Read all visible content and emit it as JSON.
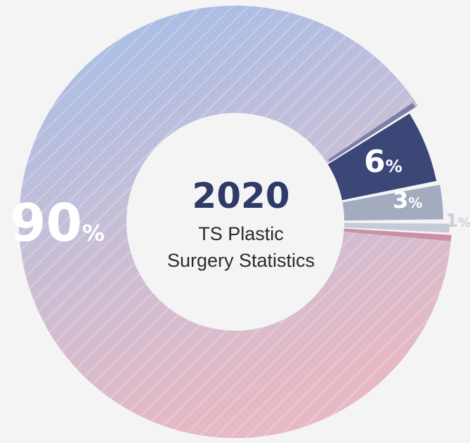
{
  "chart_data": {
    "type": "pie",
    "title": "2020",
    "subtitle_lines": [
      "TS Plastic",
      "Surgery Statistics"
    ],
    "slices": [
      {
        "label_number": "90",
        "label_unit": "%",
        "value": 90,
        "color": "#a9c0e6"
      },
      {
        "label_number": "6",
        "label_unit": "%",
        "value": 6,
        "color": "#3a4777"
      },
      {
        "label_number": "3",
        "label_unit": "%",
        "value": 3,
        "color": "#a3abbe"
      },
      {
        "label_number": "1",
        "label_unit": "%",
        "value": 1,
        "color": "#c5ccd8"
      }
    ],
    "colors": {
      "gradient_top": "#a3bde9",
      "gradient_mid": "#c5bfd8",
      "gradient_bottom": "#e6b9c4",
      "background": "#f4f4f5",
      "hole": "#f4f4f5",
      "title": "#2e3b68",
      "subtitle": "#2b2b2b",
      "label_big": "#ffffff",
      "label_small_on_dark": "#ffffff",
      "label_small_on_light": "#ffffff",
      "label_outside": "#c9cfdb"
    }
  }
}
